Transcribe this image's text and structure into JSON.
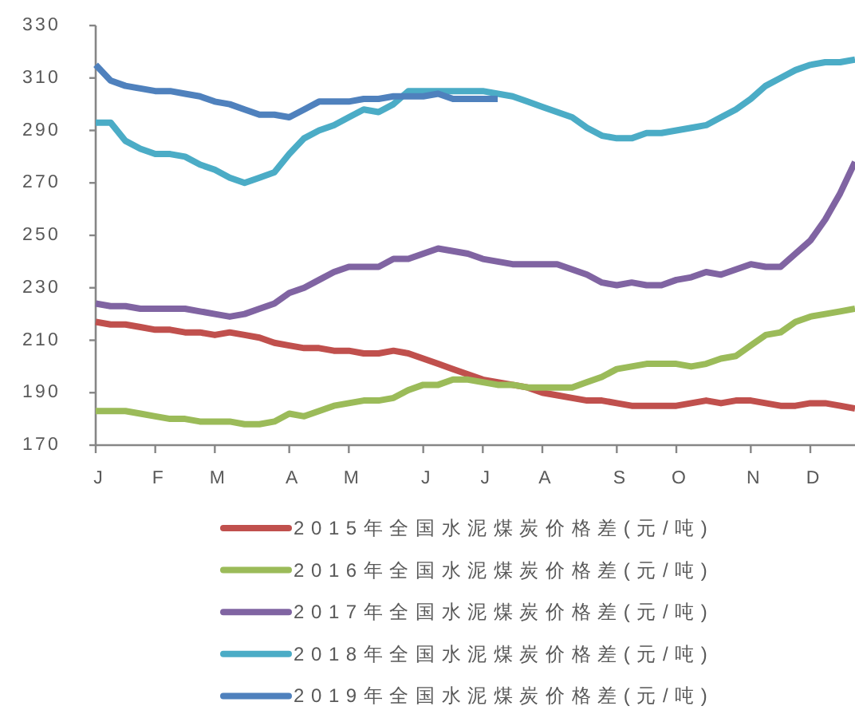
{
  "chart_data": {
    "type": "line",
    "categories": [
      "J",
      null,
      null,
      null,
      "F",
      null,
      null,
      null,
      "M",
      null,
      null,
      null,
      null,
      "A",
      null,
      null,
      null,
      "M",
      null,
      null,
      null,
      null,
      "J",
      null,
      null,
      null,
      "J",
      null,
      null,
      null,
      "A",
      null,
      null,
      null,
      null,
      "S",
      null,
      null,
      null,
      "O",
      null,
      null,
      null,
      null,
      "N",
      null,
      null,
      null,
      "D",
      null,
      null,
      null
    ],
    "ylim": [
      170,
      330
    ],
    "yticks": [
      170,
      190,
      210,
      230,
      250,
      270,
      290,
      310,
      330
    ],
    "legend": "bottom",
    "line_style": "solid",
    "series": [
      {
        "name": "2015年全国水泥煤炭价格差(元/吨)",
        "color": "#c0504d",
        "values": [
          217,
          216,
          216,
          215,
          214,
          214,
          213,
          213,
          212,
          213,
          212,
          211,
          209,
          208,
          207,
          207,
          206,
          206,
          205,
          205,
          206,
          205,
          203,
          201,
          199,
          197,
          195,
          194,
          193,
          192,
          190,
          189,
          188,
          187,
          187,
          186,
          185,
          185,
          185,
          185,
          186,
          187,
          186,
          187,
          187,
          186,
          185,
          185,
          186,
          186,
          185,
          184
        ]
      },
      {
        "name": "2016年全国水泥煤炭价格差(元/吨)",
        "color": "#9bbb59",
        "values": [
          183,
          183,
          183,
          182,
          181,
          180,
          180,
          179,
          179,
          179,
          178,
          178,
          179,
          182,
          181,
          183,
          185,
          186,
          187,
          187,
          188,
          191,
          193,
          193,
          195,
          195,
          194,
          193,
          193,
          192,
          192,
          192,
          192,
          194,
          196,
          199,
          200,
          201,
          201,
          201,
          200,
          201,
          203,
          204,
          208,
          212,
          213,
          217,
          219,
          220,
          221,
          222
        ]
      },
      {
        "name": "2017年全国水泥煤炭价格差(元/吨)",
        "color": "#8064a2",
        "values": [
          224,
          223,
          223,
          222,
          222,
          222,
          222,
          221,
          220,
          219,
          220,
          222,
          224,
          228,
          230,
          233,
          236,
          238,
          238,
          238,
          241,
          241,
          243,
          245,
          244,
          243,
          241,
          240,
          239,
          239,
          239,
          239,
          237,
          235,
          232,
          231,
          232,
          231,
          231,
          233,
          234,
          236,
          235,
          237,
          239,
          238,
          238,
          243,
          248,
          256,
          266,
          278
        ]
      },
      {
        "name": "2018年全国水泥煤炭价格差(元/吨)",
        "color": "#4bacc6",
        "values": [
          293,
          293,
          286,
          283,
          281,
          281,
          280,
          277,
          275,
          272,
          270,
          272,
          274,
          281,
          287,
          290,
          292,
          295,
          298,
          297,
          300,
          305,
          305,
          305,
          305,
          305,
          305,
          304,
          303,
          301,
          299,
          297,
          295,
          291,
          288,
          287,
          287,
          289,
          289,
          290,
          291,
          292,
          295,
          298,
          302,
          307,
          310,
          313,
          315,
          316,
          316,
          317
        ]
      },
      {
        "name": "2019年全国水泥煤炭价格差(元/吨)",
        "color": "#4f81bd",
        "values": [
          315,
          309,
          307,
          306,
          305,
          305,
          304,
          303,
          301,
          300,
          298,
          296,
          296,
          295,
          298,
          301,
          301,
          301,
          302,
          302,
          303,
          303,
          303,
          304,
          302,
          302,
          302,
          302,
          null,
          null,
          null,
          null,
          null,
          null,
          null,
          null,
          null,
          null,
          null,
          null,
          null,
          null,
          null,
          null,
          null,
          null,
          null,
          null,
          null,
          null,
          null,
          null
        ]
      }
    ]
  }
}
